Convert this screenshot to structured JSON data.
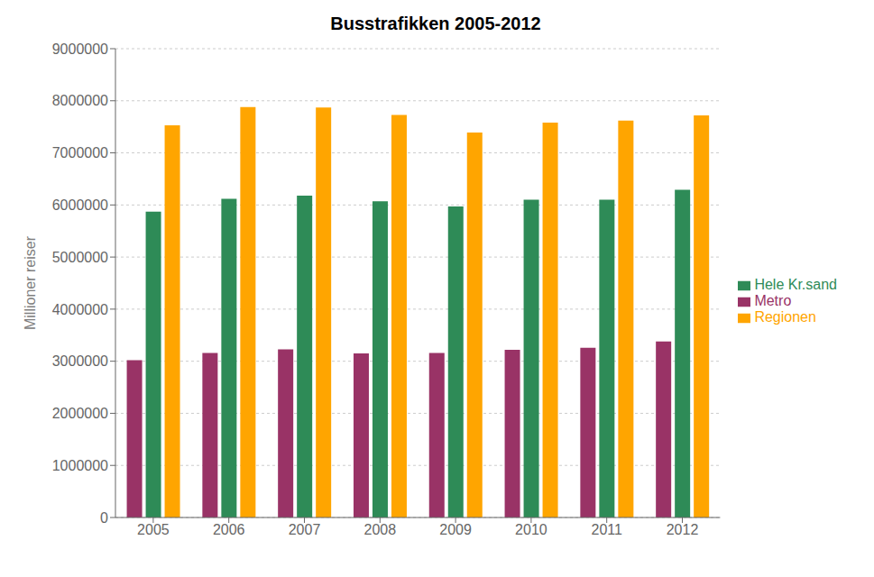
{
  "chart_data": {
    "type": "bar",
    "title": "Busstrafikken 2005-2012",
    "ylabel": "Millioner reiser",
    "categories": [
      "2005",
      "2006",
      "2007",
      "2008",
      "2009",
      "2010",
      "2011",
      "2012"
    ],
    "series": [
      {
        "name": "Metro",
        "color": "#993366",
        "values": [
          3020000,
          3160000,
          3230000,
          3150000,
          3160000,
          3220000,
          3260000,
          3380000
        ]
      },
      {
        "name": "Hele Kr.sand",
        "color": "#2e8b57",
        "values": [
          5870000,
          6120000,
          6180000,
          6070000,
          5970000,
          6100000,
          6100000,
          6290000
        ]
      },
      {
        "name": "Regionen",
        "color": "#ffa500",
        "values": [
          7530000,
          7880000,
          7870000,
          7730000,
          7390000,
          7580000,
          7620000,
          7720000
        ]
      }
    ],
    "ylim": [
      0,
      9000000
    ],
    "yticks": [
      0,
      1000000,
      2000000,
      3000000,
      4000000,
      5000000,
      6000000,
      7000000,
      8000000,
      9000000
    ],
    "grid": true,
    "legend": "right"
  }
}
